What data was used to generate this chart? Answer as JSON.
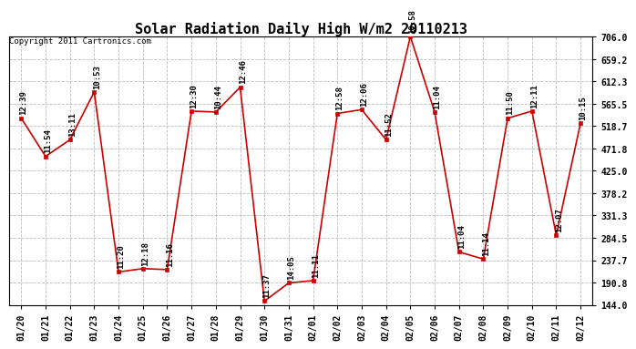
{
  "title": "Solar Radiation Daily High W/m2 20110213",
  "copyright": "Copyright 2011 Cartronics.com",
  "x_labels": [
    "01/20",
    "01/21",
    "01/22",
    "01/23",
    "01/24",
    "01/25",
    "01/26",
    "01/27",
    "01/28",
    "01/29",
    "01/30",
    "01/31",
    "02/01",
    "02/02",
    "02/03",
    "02/04",
    "02/05",
    "02/06",
    "02/07",
    "02/08",
    "02/09",
    "02/10",
    "02/11",
    "02/12"
  ],
  "y_values": [
    535,
    455,
    490,
    590,
    213,
    220,
    218,
    550,
    548,
    600,
    152,
    190,
    195,
    545,
    553,
    490,
    706,
    548,
    255,
    240,
    535,
    550,
    290,
    525
  ],
  "time_labels": [
    "12:39",
    "11:54",
    "13:11",
    "10:53",
    "11:20",
    "12:18",
    "11:16",
    "12:30",
    "10:44",
    "12:46",
    "11:37",
    "14:05",
    "11:11",
    "12:58",
    "12:06",
    "11:52",
    "10:58",
    "11:04",
    "11:04",
    "11:14",
    "11:50",
    "12:11",
    "12:07",
    "10:15"
  ],
  "ylim_min": 144.0,
  "ylim_max": 706.0,
  "yticks": [
    144.0,
    190.8,
    237.7,
    284.5,
    331.3,
    378.2,
    425.0,
    471.8,
    518.7,
    565.5,
    612.3,
    659.2,
    706.0
  ],
  "ytick_labels": [
    "144.0",
    "190.8",
    "237.7",
    "284.5",
    "331.3",
    "378.2",
    "425.0",
    "471.8",
    "518.7",
    "565.5",
    "612.3",
    "659.2",
    "706.0"
  ],
  "line_color": "#cc0000",
  "bg_color": "#ffffff",
  "grid_color": "#bbbbbb",
  "title_fontsize": 11,
  "tick_fontsize": 7,
  "copyright_fontsize": 6.5,
  "annot_fontsize": 6.5,
  "figwidth": 6.9,
  "figheight": 3.75,
  "dpi": 100
}
